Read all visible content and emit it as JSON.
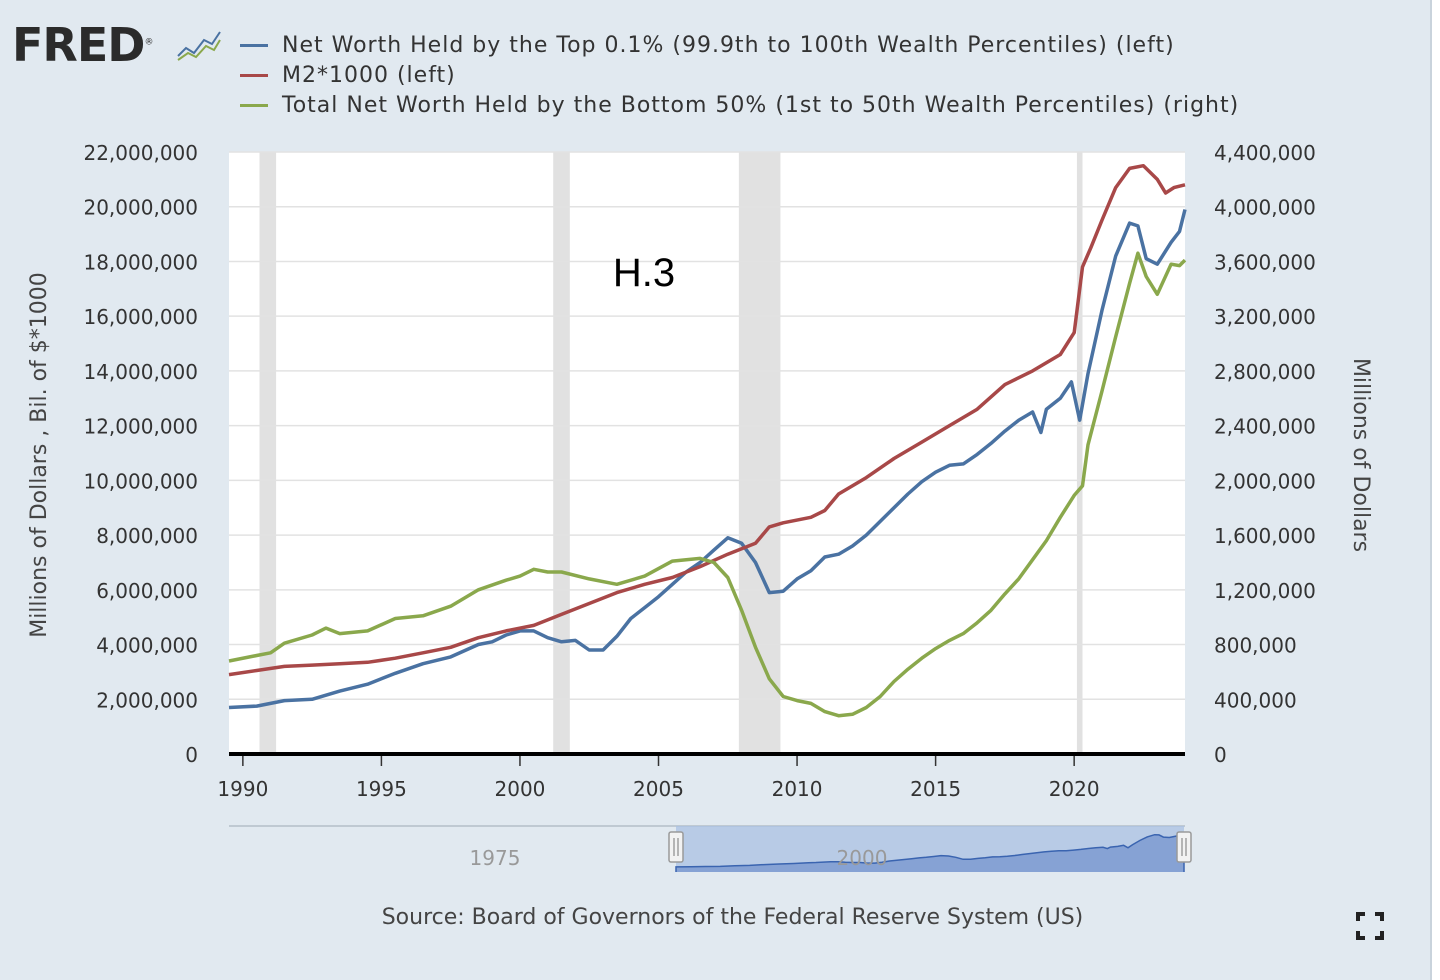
{
  "brand": {
    "logo_text": "FRED",
    "logo_mark": "®"
  },
  "icons": {
    "logo_graph": "fred-trend-lines-icon",
    "fullscreen": "fullscreen-expand-icon"
  },
  "colors": {
    "top01": "#4a72a2",
    "m2": "#a84848",
    "bottom50": "#8aa84c",
    "recession": "#e1e1e1",
    "navigator_fill": "#a9c0e3"
  },
  "legend": [
    {
      "label": "Net Worth Held by the Top 0.1% (99.9th to 100th Wealth Percentiles) (left)",
      "color": "#4a72a2"
    },
    {
      "label": "M2*1000 (left)",
      "color": "#a84848"
    },
    {
      "label": "Total Net Worth Held by the Bottom 50% (1st to 50th Wealth Percentiles) (right)",
      "color": "#8aa84c"
    }
  ],
  "source": "Source: Board of Governors of the Federal Reserve System (US)",
  "chart_data": {
    "type": "line",
    "annotation": "H.3",
    "xlim": [
      1989.5,
      2024.0
    ],
    "x_ticks": [
      1990,
      1995,
      2000,
      2005,
      2010,
      2015,
      2020
    ],
    "y_left": {
      "label": "Millions of Dollars , Bil. of $*1000",
      "ylim": [
        0,
        22000000
      ],
      "ticks": [
        "0",
        "2,000,000",
        "4,000,000",
        "6,000,000",
        "8,000,000",
        "10,000,000",
        "12,000,000",
        "14,000,000",
        "16,000,000",
        "18,000,000",
        "20,000,000",
        "22,000,000"
      ]
    },
    "y_right": {
      "label": "Millions of Dollars",
      "ylim": [
        0,
        4400000
      ],
      "ticks": [
        "0",
        "400,000",
        "800,000",
        "1,200,000",
        "1,600,000",
        "2,000,000",
        "2,400,000",
        "2,800,000",
        "3,200,000",
        "3,600,000",
        "4,000,000",
        "4,400,000"
      ]
    },
    "grid": true,
    "recessions": [
      [
        1990.6,
        1991.2
      ],
      [
        2001.2,
        2001.8
      ],
      [
        2007.9,
        2009.4
      ],
      [
        2020.1,
        2020.3
      ]
    ],
    "series": [
      {
        "name": "Net Worth Held by the Top 0.1% (99.9th to 100th Wealth Percentiles) (left)",
        "axis": "left",
        "points": [
          [
            1989.5,
            1700000
          ],
          [
            1990.5,
            1750000
          ],
          [
            1991.5,
            1950000
          ],
          [
            1992.5,
            2000000
          ],
          [
            1993.5,
            2300000
          ],
          [
            1994.5,
            2550000
          ],
          [
            1995.5,
            2950000
          ],
          [
            1996.5,
            3300000
          ],
          [
            1997.5,
            3550000
          ],
          [
            1998.5,
            4000000
          ],
          [
            1999.0,
            4100000
          ],
          [
            1999.5,
            4350000
          ],
          [
            2000.0,
            4500000
          ],
          [
            2000.5,
            4500000
          ],
          [
            2001.0,
            4250000
          ],
          [
            2001.5,
            4100000
          ],
          [
            2002.0,
            4150000
          ],
          [
            2002.5,
            3800000
          ],
          [
            2003.0,
            3800000
          ],
          [
            2003.5,
            4300000
          ],
          [
            2004.0,
            4950000
          ],
          [
            2004.5,
            5350000
          ],
          [
            2005.0,
            5750000
          ],
          [
            2005.5,
            6200000
          ],
          [
            2006.0,
            6650000
          ],
          [
            2006.5,
            7000000
          ],
          [
            2007.0,
            7450000
          ],
          [
            2007.5,
            7900000
          ],
          [
            2008.0,
            7700000
          ],
          [
            2008.5,
            7000000
          ],
          [
            2009.0,
            5900000
          ],
          [
            2009.5,
            5950000
          ],
          [
            2010.0,
            6400000
          ],
          [
            2010.5,
            6700000
          ],
          [
            2011.0,
            7200000
          ],
          [
            2011.5,
            7300000
          ],
          [
            2012.0,
            7600000
          ],
          [
            2012.5,
            8000000
          ],
          [
            2013.0,
            8500000
          ],
          [
            2013.5,
            9000000
          ],
          [
            2014.0,
            9500000
          ],
          [
            2014.5,
            9950000
          ],
          [
            2015.0,
            10300000
          ],
          [
            2015.5,
            10550000
          ],
          [
            2016.0,
            10600000
          ],
          [
            2016.5,
            10950000
          ],
          [
            2017.0,
            11350000
          ],
          [
            2017.5,
            11800000
          ],
          [
            2018.0,
            12200000
          ],
          [
            2018.5,
            12500000
          ],
          [
            2018.8,
            11750000
          ],
          [
            2019.0,
            12600000
          ],
          [
            2019.5,
            13000000
          ],
          [
            2019.9,
            13600000
          ],
          [
            2020.2,
            12200000
          ],
          [
            2020.5,
            13900000
          ],
          [
            2021.0,
            16200000
          ],
          [
            2021.5,
            18200000
          ],
          [
            2022.0,
            19400000
          ],
          [
            2022.3,
            19300000
          ],
          [
            2022.6,
            18100000
          ],
          [
            2023.0,
            17900000
          ],
          [
            2023.5,
            18700000
          ],
          [
            2023.8,
            19100000
          ],
          [
            2024.0,
            19900000
          ]
        ]
      },
      {
        "name": "M2*1000 (left)",
        "axis": "left",
        "points": [
          [
            1989.5,
            2900000
          ],
          [
            1990.5,
            3050000
          ],
          [
            1991.5,
            3200000
          ],
          [
            1992.5,
            3250000
          ],
          [
            1993.5,
            3300000
          ],
          [
            1994.5,
            3350000
          ],
          [
            1995.5,
            3500000
          ],
          [
            1996.5,
            3700000
          ],
          [
            1997.5,
            3900000
          ],
          [
            1998.5,
            4250000
          ],
          [
            1999.5,
            4500000
          ],
          [
            2000.5,
            4700000
          ],
          [
            2001.5,
            5100000
          ],
          [
            2002.5,
            5500000
          ],
          [
            2003.5,
            5900000
          ],
          [
            2004.5,
            6200000
          ],
          [
            2005.5,
            6450000
          ],
          [
            2006.5,
            6850000
          ],
          [
            2007.5,
            7300000
          ],
          [
            2008.5,
            7700000
          ],
          [
            2009.0,
            8300000
          ],
          [
            2009.5,
            8450000
          ],
          [
            2010.5,
            8650000
          ],
          [
            2011.0,
            8900000
          ],
          [
            2011.5,
            9500000
          ],
          [
            2012.5,
            10100000
          ],
          [
            2013.5,
            10800000
          ],
          [
            2014.5,
            11400000
          ],
          [
            2015.5,
            12000000
          ],
          [
            2016.5,
            12600000
          ],
          [
            2017.5,
            13500000
          ],
          [
            2018.5,
            14000000
          ],
          [
            2019.5,
            14600000
          ],
          [
            2020.0,
            15400000
          ],
          [
            2020.3,
            17800000
          ],
          [
            2020.6,
            18500000
          ],
          [
            2021.0,
            19500000
          ],
          [
            2021.5,
            20700000
          ],
          [
            2022.0,
            21400000
          ],
          [
            2022.5,
            21500000
          ],
          [
            2023.0,
            21000000
          ],
          [
            2023.3,
            20500000
          ],
          [
            2023.6,
            20700000
          ],
          [
            2024.0,
            20800000
          ]
        ]
      },
      {
        "name": "Total Net Worth Held by the Bottom 50% (1st to 50th Wealth Percentiles) (right)",
        "axis": "right",
        "points": [
          [
            1989.5,
            680000
          ],
          [
            1990.5,
            720000
          ],
          [
            1991.0,
            740000
          ],
          [
            1991.5,
            810000
          ],
          [
            1992.5,
            870000
          ],
          [
            1993.0,
            920000
          ],
          [
            1993.5,
            880000
          ],
          [
            1994.5,
            900000
          ],
          [
            1995.5,
            990000
          ],
          [
            1996.5,
            1010000
          ],
          [
            1997.5,
            1080000
          ],
          [
            1998.5,
            1200000
          ],
          [
            1999.5,
            1270000
          ],
          [
            2000.0,
            1300000
          ],
          [
            2000.5,
            1350000
          ],
          [
            2001.0,
            1330000
          ],
          [
            2001.5,
            1330000
          ],
          [
            2002.5,
            1280000
          ],
          [
            2003.5,
            1240000
          ],
          [
            2004.5,
            1300000
          ],
          [
            2005.5,
            1410000
          ],
          [
            2006.0,
            1420000
          ],
          [
            2006.5,
            1430000
          ],
          [
            2007.0,
            1400000
          ],
          [
            2007.5,
            1290000
          ],
          [
            2008.0,
            1050000
          ],
          [
            2008.5,
            780000
          ],
          [
            2009.0,
            550000
          ],
          [
            2009.5,
            420000
          ],
          [
            2010.0,
            390000
          ],
          [
            2010.5,
            370000
          ],
          [
            2011.0,
            310000
          ],
          [
            2011.5,
            280000
          ],
          [
            2012.0,
            290000
          ],
          [
            2012.5,
            340000
          ],
          [
            2013.0,
            420000
          ],
          [
            2013.5,
            530000
          ],
          [
            2014.0,
            620000
          ],
          [
            2014.5,
            700000
          ],
          [
            2015.0,
            770000
          ],
          [
            2015.5,
            830000
          ],
          [
            2016.0,
            880000
          ],
          [
            2016.5,
            960000
          ],
          [
            2017.0,
            1050000
          ],
          [
            2017.5,
            1170000
          ],
          [
            2018.0,
            1280000
          ],
          [
            2018.5,
            1420000
          ],
          [
            2019.0,
            1560000
          ],
          [
            2019.5,
            1730000
          ],
          [
            2020.0,
            1890000
          ],
          [
            2020.3,
            1960000
          ],
          [
            2020.5,
            2260000
          ],
          [
            2021.0,
            2650000
          ],
          [
            2021.5,
            3050000
          ],
          [
            2022.0,
            3440000
          ],
          [
            2022.3,
            3660000
          ],
          [
            2022.6,
            3490000
          ],
          [
            2023.0,
            3360000
          ],
          [
            2023.5,
            3580000
          ],
          [
            2023.8,
            3570000
          ],
          [
            2024.0,
            3610000
          ]
        ]
      }
    ],
    "navigator": {
      "tick_labels": [
        "1975",
        "2000"
      ]
    }
  }
}
